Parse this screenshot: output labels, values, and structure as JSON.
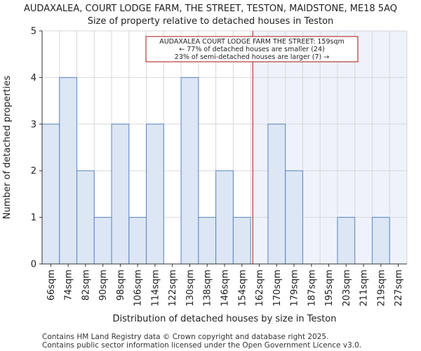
{
  "header": {
    "title_line1": "AUDAXALEA, COURT LODGE FARM, THE STREET, TESTON, MAIDSTONE, ME18 5AQ",
    "title_line2": "Size of property relative to detached houses in Teston"
  },
  "footer": {
    "line1": "Contains HM Land Registry data © Crown copyright and database right 2025.",
    "line2": "Contains public sector information licensed under the Open Government Licence v3.0."
  },
  "chart_data": {
    "type": "bar",
    "title": "Size of property relative to detached houses in Teston",
    "xlabel": "Distribution of detached houses by size in Teston",
    "ylabel": "Number of detached properties",
    "ylim": [
      0,
      5
    ],
    "yticks": [
      0,
      1,
      2,
      3,
      4,
      5
    ],
    "categories": [
      "66sqm",
      "74sqm",
      "82sqm",
      "90sqm",
      "98sqm",
      "106sqm",
      "114sqm",
      "122sqm",
      "130sqm",
      "138sqm",
      "146sqm",
      "154sqm",
      "162sqm",
      "170sqm",
      "179sqm",
      "187sqm",
      "195sqm",
      "203sqm",
      "211sqm",
      "219sqm",
      "227sqm"
    ],
    "values": [
      3,
      4,
      2,
      1,
      3,
      1,
      3,
      0,
      4,
      1,
      2,
      1,
      0,
      3,
      2,
      0,
      0,
      1,
      0,
      1,
      0
    ],
    "property_marker": {
      "value_sqm": 159,
      "annotation_lines": [
        "AUDAXALEA COURT LODGE FARM THE STREET: 159sqm",
        "← 77% of detached houses are smaller (24)",
        "23% of semi-detached houses are larger (7) →"
      ]
    },
    "colors": {
      "bar_fill": "#dce6f4",
      "bar_stroke": "#5b84c4",
      "marker": "#aa1111",
      "shade": "#eef2fb",
      "grid": "#d8d8d8"
    }
  }
}
